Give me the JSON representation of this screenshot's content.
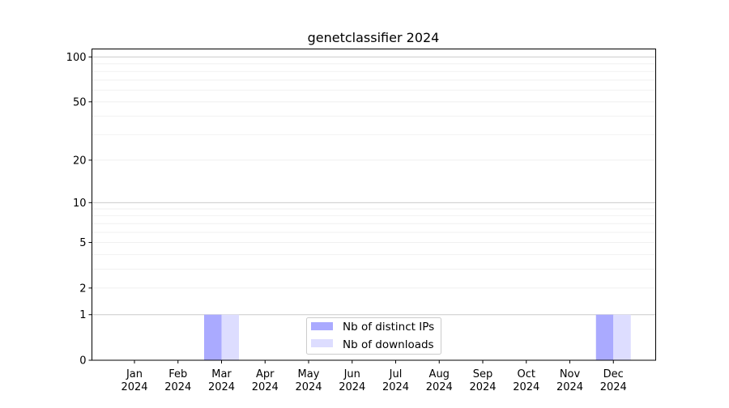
{
  "chart_data": {
    "type": "bar",
    "title": "genetclassifier 2024",
    "xlabel": "",
    "ylabel": "",
    "y_scale": "log(1+y)",
    "ylim": [
      0,
      113
    ],
    "grid": "horizontal major and minor",
    "legend_position": "lower center",
    "categories": [
      "Jan\n2024",
      "Feb\n2024",
      "Mar\n2024",
      "Apr\n2024",
      "May\n2024",
      "Jun\n2024",
      "Jul\n2024",
      "Aug\n2024",
      "Sep\n2024",
      "Oct\n2024",
      "Nov\n2024",
      "Dec\n2024"
    ],
    "y_ticks": [
      0,
      1,
      2,
      5,
      10,
      20,
      50,
      100
    ],
    "series": [
      {
        "name": "Nb of distinct IPs",
        "color": "#aaaaff",
        "values": [
          0,
          0,
          1,
          0,
          0,
          0,
          0,
          0,
          0,
          0,
          0,
          1
        ]
      },
      {
        "name": "Nb of downloads",
        "color": "#ddddff",
        "values": [
          0,
          0,
          1,
          0,
          0,
          0,
          0,
          0,
          0,
          0,
          0,
          1
        ]
      }
    ]
  }
}
